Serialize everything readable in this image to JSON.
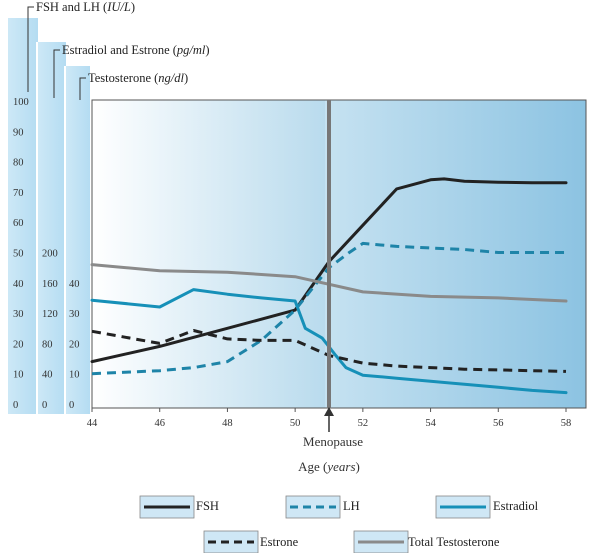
{
  "chart_data": {
    "type": "line",
    "xlabel": {
      "text": "Age",
      "unit": "years"
    },
    "xlim": [
      44,
      58
    ],
    "xticks": [
      44,
      46,
      48,
      50,
      52,
      54,
      56,
      58
    ],
    "x_annotation": {
      "label": "Menopause",
      "x": 51
    },
    "axes": [
      {
        "label": "FSH and LH",
        "unit": "IU/L",
        "ticks": [
          0,
          10,
          20,
          30,
          40,
          50,
          60,
          70,
          80,
          90,
          100
        ],
        "ylim": [
          0,
          100
        ]
      },
      {
        "label": "Estradiol and Estrone",
        "unit": "pg/ml",
        "ticks": [
          0,
          40,
          80,
          120,
          160,
          200
        ],
        "ylim": [
          0,
          400
        ]
      },
      {
        "label": "Testosterone",
        "unit": "ng/dl",
        "ticks": [
          0,
          10,
          20,
          30,
          40
        ],
        "ylim": [
          0,
          100
        ]
      }
    ],
    "series": [
      {
        "name": "FSH",
        "axis": 0,
        "color": "#222222",
        "style": "solid",
        "x": [
          44,
          46,
          48,
          50,
          51,
          52,
          53,
          54,
          54.4,
          55,
          56,
          57,
          58
        ],
        "y": [
          14,
          19,
          25,
          31,
          47,
          59,
          71,
          74,
          74.3,
          73.5,
          73.2,
          73,
          73
        ]
      },
      {
        "name": "LH",
        "axis": 0,
        "color": "#1e84a8",
        "style": "dashed",
        "x": [
          44,
          46,
          47,
          48,
          49,
          50,
          51,
          51.6,
          52,
          53,
          54,
          55,
          56,
          57,
          58
        ],
        "y": [
          10,
          11,
          12,
          14,
          21,
          31,
          45,
          50,
          53,
          52,
          51.5,
          51,
          50,
          50,
          50
        ]
      },
      {
        "name": "Estradiol",
        "axis": 1,
        "color": "#1690b8",
        "style": "solid",
        "x": [
          44,
          46,
          47,
          48,
          49,
          50,
          50.3,
          50.8,
          51.2,
          51.5,
          52,
          53,
          54,
          55,
          56,
          57,
          58
        ],
        "y": [
          137,
          128,
          151,
          145,
          140,
          136,
          100,
          87,
          64,
          48,
          38,
          34,
          30,
          26,
          22,
          18,
          15
        ]
      },
      {
        "name": "Estrone",
        "axis": 1,
        "color": "#222222",
        "style": "dashed",
        "x": [
          44,
          46,
          47,
          48,
          49,
          50,
          51,
          52,
          53,
          54,
          55,
          56,
          57,
          58
        ],
        "y": [
          96,
          80,
          97,
          86,
          84,
          84,
          64,
          54,
          50,
          48,
          46,
          45,
          44,
          43
        ]
      },
      {
        "name": "Total Testosterone",
        "axis": 2,
        "color": "#8a8a8a",
        "style": "solid",
        "x": [
          44,
          46,
          48,
          50,
          52,
          54,
          56,
          58
        ],
        "y": [
          46,
          44,
          43.5,
          42,
          37,
          35.5,
          35,
          34
        ]
      }
    ],
    "legend_position": "bottom",
    "grid": false
  }
}
